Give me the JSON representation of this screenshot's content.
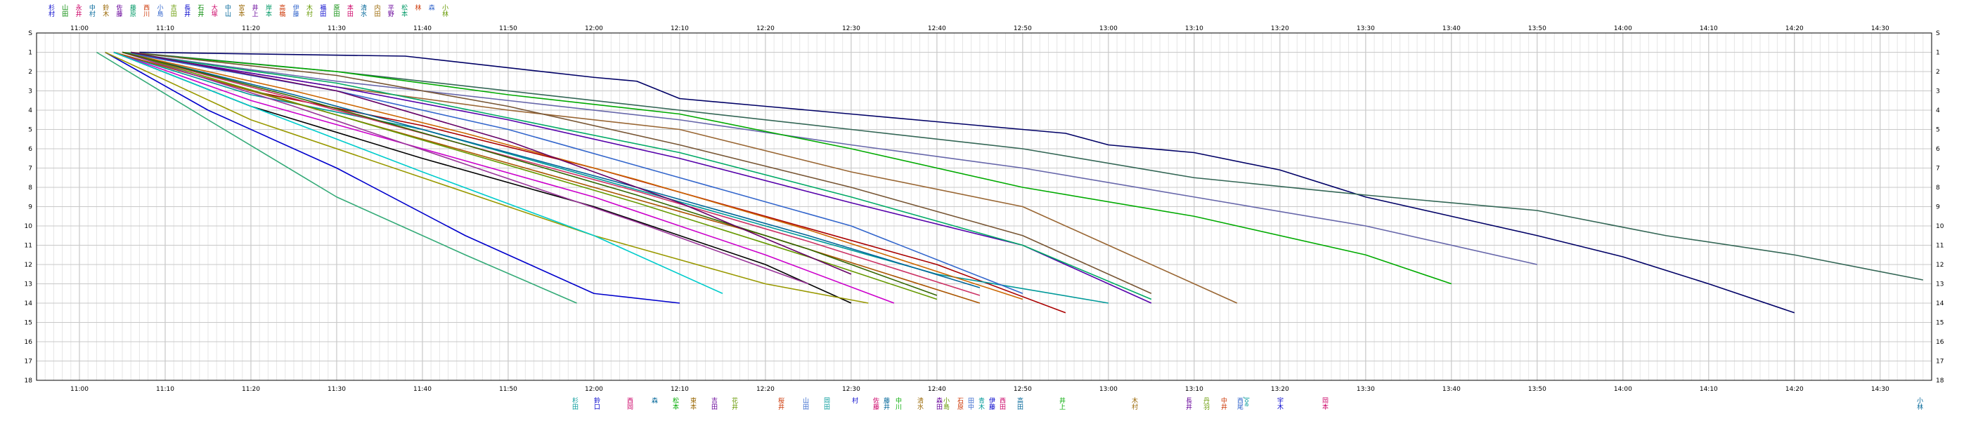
{
  "chart_data": {
    "type": "line",
    "title": "",
    "xlabel": "",
    "ylabel": "",
    "x_ticks": [
      "11:00",
      "11:10",
      "11:20",
      "11:30",
      "11:40",
      "11:50",
      "12:00",
      "12:10",
      "12:20",
      "12:30",
      "12:40",
      "12:50",
      "13:00",
      "13:10",
      "13:20",
      "13:30",
      "13:40",
      "13:50",
      "14:00",
      "14:10",
      "14:20",
      "14:30"
    ],
    "xlim": [
      "10:55",
      "14:36"
    ],
    "y_ticks": [
      "S",
      "1",
      "2",
      "3",
      "4",
      "5",
      "6",
      "7",
      "8",
      "9",
      "10",
      "11",
      "12",
      "13",
      "14",
      "15",
      "16",
      "17",
      "18"
    ],
    "ylim": [
      0,
      18
    ],
    "y_reversed": true,
    "grid": true,
    "top_names": [
      "杉村",
      "山田",
      "永井",
      "中村",
      "鈴木",
      "佐藤",
      "藤原",
      "西川",
      "小島",
      "吉田",
      "長井",
      "石井",
      "大塚",
      "中山",
      "宮本",
      "井上",
      "岸本",
      "高橋",
      "伊藤",
      "木村",
      "福田",
      "原田",
      "本田",
      "清水",
      "内田",
      "平野",
      "松本",
      "林",
      "森",
      "小林"
    ],
    "bottom_names": [
      "杉田",
      "鈴口",
      "西岡",
      "森",
      "松本",
      "東本",
      "吉田",
      "花井",
      "桜井",
      "山田",
      "岡田",
      "村",
      "佐藤",
      "藤井",
      "中川",
      "清水",
      "森田",
      "小島",
      "石原",
      "田中",
      "青木",
      "伊藤",
      "西田",
      "高田",
      "井上",
      "木村",
      "長井",
      "丹羽",
      "中井",
      "西尾",
      "Joe",
      "宇木",
      "岡本",
      "小林"
    ],
    "series": [
      {
        "color": "#000066",
        "x": [
          "11:07",
          "11:38",
          "12:00",
          "12:05",
          "12:10",
          "12:20",
          "12:30",
          "12:40",
          "12:50",
          "12:55",
          "13:00",
          "13:10",
          "13:20",
          "13:30",
          "13:40",
          "13:50",
          "14:00",
          "14:10",
          "14:20"
        ],
        "y": [
          1,
          1.2,
          2.3,
          2.5,
          3.4,
          3.8,
          4.2,
          4.6,
          5,
          5.2,
          5.8,
          6.2,
          7.1,
          8.5,
          9.5,
          10.5,
          11.6,
          13,
          14.5
        ]
      },
      {
        "color": "#336655",
        "x": [
          "11:06",
          "11:30",
          "11:50",
          "12:10",
          "12:30",
          "12:50",
          "13:10",
          "13:30",
          "13:50",
          "14:05",
          "14:20",
          "14:35"
        ],
        "y": [
          1,
          2,
          3,
          4,
          5,
          6,
          7.5,
          8.4,
          9.2,
          10.5,
          11.5,
          12.8
        ]
      },
      {
        "color": "#6666AA",
        "x": [
          "11:05",
          "11:30",
          "11:50",
          "12:10",
          "12:30",
          "12:50",
          "13:10",
          "13:30",
          "13:50"
        ],
        "y": [
          1,
          2.5,
          3.5,
          4.5,
          5.8,
          7,
          8.5,
          10,
          12
        ]
      },
      {
        "color": "#00AA00",
        "x": [
          "11:05",
          "11:30",
          "11:50",
          "12:10",
          "12:30",
          "12:50",
          "13:10",
          "13:30",
          "13:40"
        ],
        "y": [
          1,
          2,
          3.2,
          4.2,
          6,
          8,
          9.5,
          11.5,
          13
        ]
      },
      {
        "color": "#996633",
        "x": [
          "11:05",
          "11:30",
          "11:50",
          "12:10",
          "12:30",
          "12:50",
          "13:00",
          "13:15"
        ],
        "y": [
          1,
          2.8,
          4,
          5,
          7.2,
          9,
          11,
          14
        ]
      },
      {
        "color": "#AA0000",
        "x": [
          "11:04",
          "11:20",
          "11:40",
          "12:00",
          "12:20",
          "12:40",
          "12:55"
        ],
        "y": [
          1,
          3,
          4.8,
          7,
          9.5,
          12,
          14.5
        ]
      },
      {
        "color": "#009999",
        "x": [
          "11:04",
          "11:20",
          "11:40",
          "12:00",
          "12:20",
          "12:40",
          "13:00"
        ],
        "y": [
          1,
          3.2,
          5,
          7.5,
          10,
          12.5,
          14
        ]
      },
      {
        "color": "#CC00CC",
        "x": [
          "11:04",
          "11:20",
          "11:40",
          "12:00",
          "12:20",
          "12:35"
        ],
        "y": [
          1,
          3.5,
          6,
          8.5,
          11.5,
          14
        ]
      },
      {
        "color": "#000000",
        "x": [
          "11:04",
          "11:20",
          "11:40",
          "12:00",
          "12:20",
          "12:30"
        ],
        "y": [
          1,
          3.8,
          6.5,
          9,
          12,
          14
        ]
      },
      {
        "color": "#0000CC",
        "x": [
          "11:03",
          "11:15",
          "11:30",
          "11:45",
          "12:00",
          "12:10"
        ],
        "y": [
          1,
          4,
          7,
          10.5,
          13.5,
          14
        ]
      },
      {
        "color": "#999900",
        "x": [
          "11:03",
          "11:20",
          "11:40",
          "12:00",
          "12:20",
          "12:32"
        ],
        "y": [
          1,
          4.5,
          7.5,
          10.5,
          13,
          14
        ]
      },
      {
        "color": "#33AA77",
        "x": [
          "11:02",
          "11:15",
          "11:30",
          "11:45",
          "11:58"
        ],
        "y": [
          1,
          4.5,
          8.5,
          11.5,
          14
        ]
      },
      {
        "color": "#AA5500",
        "x": [
          "11:04",
          "11:20",
          "11:40",
          "12:00",
          "12:20",
          "12:45"
        ],
        "y": [
          1,
          3,
          5.5,
          8,
          10.5,
          14
        ]
      },
      {
        "color": "#5500AA",
        "x": [
          "11:05",
          "11:30",
          "11:50",
          "12:10",
          "12:30",
          "12:50",
          "13:05"
        ],
        "y": [
          1,
          2.8,
          4.5,
          6.5,
          8.8,
          11,
          14
        ]
      },
      {
        "color": "#00AA66",
        "x": [
          "11:05",
          "11:30",
          "11:50",
          "12:10",
          "12:30",
          "12:50",
          "13:05"
        ],
        "y": [
          1,
          2.6,
          4.4,
          6.2,
          8.5,
          11,
          13.8
        ]
      },
      {
        "color": "#775533",
        "x": [
          "11:06",
          "11:30",
          "11:50",
          "12:10",
          "12:30",
          "12:50",
          "13:05"
        ],
        "y": [
          1,
          2.2,
          3.8,
          5.8,
          8,
          10.5,
          13.5
        ]
      },
      {
        "color": "#3366CC",
        "x": [
          "11:05",
          "11:30",
          "11:50",
          "12:10",
          "12:30",
          "12:50"
        ],
        "y": [
          1,
          3,
          5,
          7.5,
          10,
          13.5
        ]
      },
      {
        "color": "#CC3366",
        "x": [
          "11:05",
          "11:25",
          "11:45",
          "12:05",
          "12:25",
          "12:45"
        ],
        "y": [
          1,
          3.4,
          5.8,
          8.2,
          10.8,
          13.6
        ]
      },
      {
        "color": "#669900",
        "x": [
          "11:05",
          "11:25",
          "11:45",
          "12:05",
          "12:25",
          "12:40"
        ],
        "y": [
          1,
          3.6,
          6.2,
          8.8,
          11.6,
          13.8
        ]
      },
      {
        "color": "#006699",
        "x": [
          "11:05",
          "11:25",
          "11:45",
          "12:05",
          "12:25",
          "12:45"
        ],
        "y": [
          1,
          3.2,
          5.6,
          8,
          10.5,
          13.2
        ]
      },
      {
        "color": "#993399",
        "x": [
          "11:05",
          "11:25",
          "11:45",
          "12:05",
          "12:25"
        ],
        "y": [
          1,
          3.8,
          6.8,
          9.8,
          13
        ]
      },
      {
        "color": "#00CCCC",
        "x": [
          "11:04",
          "11:20",
          "11:40",
          "12:00",
          "12:15"
        ],
        "y": [
          1,
          3.8,
          7.2,
          10.5,
          13.5
        ]
      },
      {
        "color": "#CC6600",
        "x": [
          "11:05",
          "11:25",
          "11:45",
          "12:05",
          "12:25",
          "12:50"
        ],
        "y": [
          1,
          3,
          5.2,
          7.6,
          10.2,
          13.8
        ]
      },
      {
        "color": "#336600",
        "x": [
          "11:05",
          "11:25",
          "11:45",
          "12:05",
          "12:25",
          "12:40"
        ],
        "y": [
          1,
          3.3,
          5.8,
          8.4,
          11.2,
          13.6
        ]
      },
      {
        "color": "#660066",
        "x": [
          "11:06",
          "11:30",
          "11:50",
          "12:10",
          "12:30"
        ],
        "y": [
          1,
          3,
          5.6,
          8.8,
          12.5
        ]
      }
    ]
  }
}
